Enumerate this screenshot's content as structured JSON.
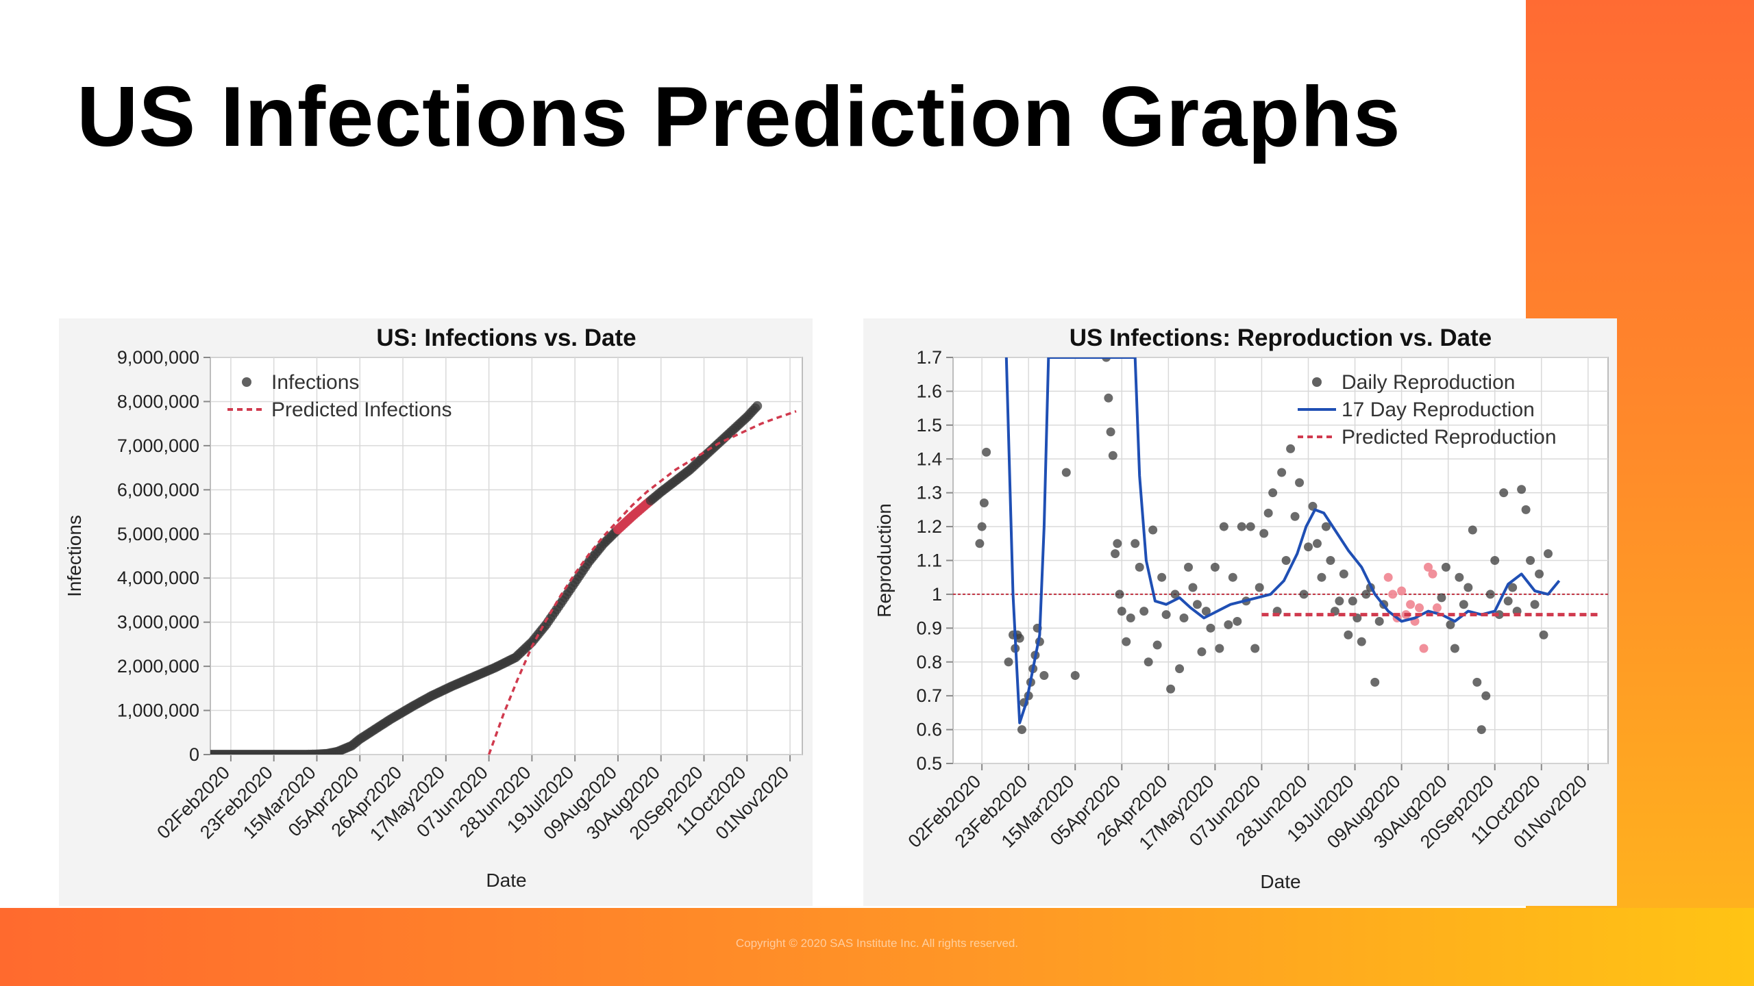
{
  "slide": {
    "title": "US Infections Prediction Graphs",
    "copyright": "Copyright © 2020 SAS Institute Inc. All rights reserved."
  },
  "colors": {
    "accent_orange": "#ff6b33",
    "accent_yellow": "#ffc414",
    "observed": "#3a3a3a",
    "predicted_red": "#d03a4e",
    "predicted_pink": "#f08a96",
    "smooth_blue": "#1f4fb4"
  },
  "chart_data": [
    {
      "type": "scatter",
      "title": "US: Infections vs. Date",
      "xlabel": "Date",
      "ylabel": "Infections",
      "x_ticks": [
        "02Feb2020",
        "23Feb2020",
        "15Mar2020",
        "05Apr2020",
        "26Apr2020",
        "17May2020",
        "07Jun2020",
        "28Jun2020",
        "19Jul2020",
        "09Aug2020",
        "30Aug2020",
        "20Sep2020",
        "11Oct2020",
        "01Nov2020"
      ],
      "xlim": [
        "2020-01-23",
        "2020-11-07"
      ],
      "ylim": [
        0,
        9000000
      ],
      "y_ticks": [
        0,
        1000000,
        2000000,
        3000000,
        4000000,
        5000000,
        6000000,
        7000000,
        8000000,
        9000000
      ],
      "y_tick_labels": [
        "0",
        "1,000,000",
        "2,000,000",
        "3,000,000",
        "4,000,000",
        "5,000,000",
        "6,000,000",
        "7,000,000",
        "8,000,000",
        "9,000,000"
      ],
      "grid": true,
      "legend_position": "top-left",
      "series": [
        {
          "name": "Infections",
          "style": "points",
          "x": [
            "2020-01-22",
            "2020-02-01",
            "2020-02-10",
            "2020-02-20",
            "2020-03-01",
            "2020-03-10",
            "2020-03-15",
            "2020-03-20",
            "2020-03-25",
            "2020-04-01",
            "2020-04-05",
            "2020-04-10",
            "2020-04-20",
            "2020-05-01",
            "2020-05-10",
            "2020-05-20",
            "2020-06-01",
            "2020-06-10",
            "2020-06-20",
            "2020-06-28",
            "2020-07-05",
            "2020-07-12",
            "2020-07-19",
            "2020-07-26",
            "2020-08-02",
            "2020-08-09",
            "2020-08-16",
            "2020-08-23",
            "2020-08-30",
            "2020-09-06",
            "2020-09-13",
            "2020-09-20",
            "2020-09-27",
            "2020-10-04",
            "2020-10-11",
            "2020-10-16"
          ],
          "y": [
            0,
            0,
            0,
            0,
            0,
            0,
            5000,
            20000,
            65000,
            200000,
            350000,
            500000,
            800000,
            1100000,
            1330000,
            1550000,
            1790000,
            1970000,
            2200000,
            2550000,
            2950000,
            3420000,
            3900000,
            4380000,
            4780000,
            5100000,
            5400000,
            5680000,
            5950000,
            6200000,
            6450000,
            6750000,
            7050000,
            7350000,
            7650000,
            7900000
          ]
        },
        {
          "name": "Predicted Infections",
          "style": "dashed",
          "x": [
            "2020-06-07",
            "2020-06-14",
            "2020-06-21",
            "2020-06-28",
            "2020-07-05",
            "2020-07-12",
            "2020-07-19",
            "2020-07-26",
            "2020-08-02",
            "2020-08-09",
            "2020-08-16",
            "2020-08-23",
            "2020-08-30",
            "2020-09-06",
            "2020-09-13",
            "2020-09-20",
            "2020-09-27",
            "2020-10-04",
            "2020-10-11",
            "2020-10-18",
            "2020-10-25",
            "2020-11-01",
            "2020-11-04"
          ],
          "y": [
            0,
            900000,
            1700000,
            2450000,
            3050000,
            3600000,
            4100000,
            4550000,
            4950000,
            5300000,
            5650000,
            5950000,
            6200000,
            6450000,
            6650000,
            6850000,
            7050000,
            7200000,
            7350000,
            7500000,
            7620000,
            7730000,
            7780000
          ]
        }
      ]
    },
    {
      "type": "scatter",
      "title": "US Infections: Reproduction vs. Date",
      "xlabel": "Date",
      "ylabel": "Reproduction",
      "x_ticks": [
        "02Feb2020",
        "23Feb2020",
        "15Mar2020",
        "05Apr2020",
        "26Apr2020",
        "17May2020",
        "07Jun2020",
        "28Jun2020",
        "19Jul2020",
        "09Aug2020",
        "30Aug2020",
        "20Sep2020",
        "11Oct2020",
        "01Nov2020"
      ],
      "xlim": [
        "2020-01-20",
        "2020-11-10"
      ],
      "ylim": [
        0.5,
        1.7
      ],
      "y_ticks": [
        0.5,
        0.6,
        0.7,
        0.8,
        0.9,
        1,
        1.1,
        1.2,
        1.3,
        1.4,
        1.5,
        1.6,
        1.7
      ],
      "y_tick_labels": [
        "0.5",
        "0.6",
        "0.7",
        "0.8",
        "0.9",
        "1",
        "1.1",
        "1.2",
        "1.3",
        "1.4",
        "1.5",
        "1.6",
        "1.7"
      ],
      "reference_line": 1,
      "grid": true,
      "legend_position": "top-right",
      "series": [
        {
          "name": "Daily Reproduction",
          "style": "points",
          "x": [
            "2020-02-01",
            "2020-02-02",
            "2020-02-03",
            "2020-02-04",
            "2020-02-14",
            "2020-02-16",
            "2020-02-17",
            "2020-02-18",
            "2020-02-19",
            "2020-02-20",
            "2020-02-21",
            "2020-02-23",
            "2020-02-24",
            "2020-02-25",
            "2020-02-26",
            "2020-02-27",
            "2020-02-28",
            "2020-03-01",
            "2020-03-11",
            "2020-03-15",
            "2020-03-29",
            "2020-03-30",
            "2020-03-31",
            "2020-04-01",
            "2020-04-02",
            "2020-04-03",
            "2020-04-04",
            "2020-04-05",
            "2020-04-07",
            "2020-04-09",
            "2020-04-11",
            "2020-04-13",
            "2020-04-15",
            "2020-04-17",
            "2020-04-19",
            "2020-04-21",
            "2020-04-23",
            "2020-04-25",
            "2020-04-27",
            "2020-04-29",
            "2020-05-01",
            "2020-05-03",
            "2020-05-05",
            "2020-05-07",
            "2020-05-09",
            "2020-05-11",
            "2020-05-13",
            "2020-05-15",
            "2020-05-17",
            "2020-05-19",
            "2020-05-21",
            "2020-05-23",
            "2020-05-25",
            "2020-05-27",
            "2020-05-29",
            "2020-05-31",
            "2020-06-02",
            "2020-06-04",
            "2020-06-06",
            "2020-06-08",
            "2020-06-10",
            "2020-06-12",
            "2020-06-14",
            "2020-06-16",
            "2020-06-18",
            "2020-06-20",
            "2020-06-22",
            "2020-06-24",
            "2020-06-26",
            "2020-06-28",
            "2020-06-30",
            "2020-07-02",
            "2020-07-04",
            "2020-07-06",
            "2020-07-08",
            "2020-07-10",
            "2020-07-12",
            "2020-07-14",
            "2020-07-16",
            "2020-07-18",
            "2020-07-20",
            "2020-07-22",
            "2020-07-24",
            "2020-07-26",
            "2020-07-28",
            "2020-07-30",
            "2020-08-01",
            "2020-08-03",
            "2020-08-05",
            "2020-08-07",
            "2020-08-09",
            "2020-08-11",
            "2020-08-13",
            "2020-08-15",
            "2020-08-17",
            "2020-08-19",
            "2020-08-21",
            "2020-08-23",
            "2020-08-25",
            "2020-08-27",
            "2020-08-29",
            "2020-08-31",
            "2020-09-02",
            "2020-09-04",
            "2020-09-06",
            "2020-09-08",
            "2020-09-10",
            "2020-09-12",
            "2020-09-14",
            "2020-09-16",
            "2020-09-18",
            "2020-09-20",
            "2020-09-22",
            "2020-09-24",
            "2020-09-26",
            "2020-09-28",
            "2020-09-30",
            "2020-10-02",
            "2020-10-04",
            "2020-10-06",
            "2020-10-08",
            "2020-10-10",
            "2020-10-12",
            "2020-10-14"
          ],
          "y": [
            1.15,
            1.2,
            1.27,
            1.42,
            0.8,
            0.88,
            0.84,
            0.88,
            0.87,
            0.6,
            0.68,
            0.7,
            0.74,
            0.78,
            0.82,
            0.9,
            0.86,
            0.76,
            1.36,
            0.76,
            1.7,
            1.58,
            1.48,
            1.41,
            1.12,
            1.15,
            1.0,
            0.95,
            0.86,
            0.93,
            1.15,
            1.08,
            0.95,
            0.8,
            1.19,
            0.85,
            1.05,
            0.94,
            0.72,
            1.0,
            0.78,
            0.93,
            1.08,
            1.02,
            0.97,
            0.83,
            0.95,
            0.9,
            1.08,
            0.84,
            1.2,
            0.91,
            1.05,
            0.92,
            1.2,
            0.98,
            1.2,
            0.84,
            1.02,
            1.18,
            1.24,
            1.3,
            0.95,
            1.36,
            1.1,
            1.43,
            1.23,
            1.33,
            1.0,
            1.14,
            1.26,
            1.15,
            1.05,
            1.2,
            1.1,
            0.95,
            0.98,
            1.06,
            0.88,
            0.98,
            0.93,
            0.86,
            1.0,
            1.02,
            0.74,
            0.92,
            0.97,
            1.05,
            1.0,
            0.93,
            1.01,
            0.94,
            0.97,
            0.92,
            0.96,
            0.84,
            1.08,
            1.06,
            0.96,
            0.99,
            1.08,
            0.91,
            0.84,
            1.05,
            0.97,
            1.02,
            1.19,
            0.74,
            0.6,
            0.7,
            1.0,
            1.1,
            0.94,
            1.3,
            0.98,
            1.02,
            0.95,
            1.31,
            1.25,
            1.1,
            0.97,
            1.06,
            0.88,
            1.12
          ]
        },
        {
          "name": "17 Day Reproduction",
          "style": "line",
          "x": [
            "2020-02-13",
            "2020-02-16",
            "2020-02-19",
            "2020-02-22",
            "2020-02-25",
            "2020-02-28",
            "2020-03-01",
            "2020-03-03",
            "2020-04-11",
            "2020-04-13",
            "2020-04-16",
            "2020-04-20",
            "2020-04-25",
            "2020-05-01",
            "2020-05-06",
            "2020-05-12",
            "2020-05-18",
            "2020-05-24",
            "2020-05-30",
            "2020-06-05",
            "2020-06-11",
            "2020-06-17",
            "2020-06-23",
            "2020-06-27",
            "2020-07-01",
            "2020-07-05",
            "2020-07-10",
            "2020-07-16",
            "2020-07-22",
            "2020-07-28",
            "2020-08-03",
            "2020-08-09",
            "2020-08-15",
            "2020-08-21",
            "2020-08-27",
            "2020-09-02",
            "2020-09-08",
            "2020-09-14",
            "2020-09-20",
            "2020-09-26",
            "2020-10-02",
            "2020-10-08",
            "2020-10-14",
            "2020-10-19"
          ],
          "y": [
            1.7,
            1.0,
            0.62,
            0.68,
            0.78,
            0.88,
            1.2,
            1.7,
            1.7,
            1.35,
            1.1,
            0.98,
            0.97,
            0.99,
            0.96,
            0.93,
            0.95,
            0.97,
            0.98,
            0.99,
            1.0,
            1.04,
            1.12,
            1.2,
            1.25,
            1.24,
            1.19,
            1.13,
            1.08,
            1.0,
            0.95,
            0.92,
            0.93,
            0.95,
            0.94,
            0.92,
            0.95,
            0.94,
            0.95,
            1.03,
            1.06,
            1.01,
            1.0,
            1.04
          ]
        },
        {
          "name": "Predicted Reproduction",
          "style": "dashed",
          "x": [
            "2020-06-07",
            "2020-11-07"
          ],
          "y": [
            0.94,
            0.94
          ]
        }
      ]
    }
  ]
}
